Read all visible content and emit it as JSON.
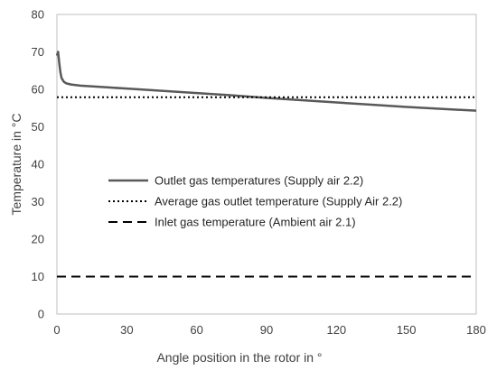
{
  "chart_data": {
    "type": "line",
    "title": "",
    "xlabel": "Angle position in the rotor in °",
    "ylabel": "Temperature in °C",
    "xlim": [
      0,
      180
    ],
    "ylim": [
      0,
      80
    ],
    "xticks": [
      "0",
      "30",
      "60",
      "90",
      "120",
      "150",
      "180"
    ],
    "yticks": [
      "0",
      "10",
      "20",
      "30",
      "40",
      "50",
      "60",
      "70",
      "80"
    ],
    "grid": false,
    "legend_position": "center-left",
    "series": [
      {
        "name": "Outlet gas temperatures (Supply air 2.2)",
        "style": "solid",
        "color": "#595959",
        "x": [
          0,
          0.5,
          1,
          1.5,
          2,
          3,
          4,
          6,
          10,
          20,
          30,
          45,
          60,
          75,
          90,
          105,
          120,
          135,
          150,
          165,
          180
        ],
        "y": [
          69,
          70,
          67,
          64.5,
          63,
          62,
          61.6,
          61.3,
          61,
          60.6,
          60.2,
          59.6,
          59,
          58.4,
          57.7,
          57.1,
          56.5,
          55.9,
          55.3,
          54.8,
          54.3
        ]
      },
      {
        "name": "Average gas outlet temperature (Supply Air 2.2)",
        "style": "dotted",
        "color": "#000000",
        "x": [
          0,
          180
        ],
        "y": [
          57.9,
          57.9
        ]
      },
      {
        "name": "Inlet gas temperature (Ambient air 2.1)",
        "style": "dashed",
        "color": "#000000",
        "x": [
          0,
          180
        ],
        "y": [
          10,
          10
        ]
      }
    ]
  }
}
